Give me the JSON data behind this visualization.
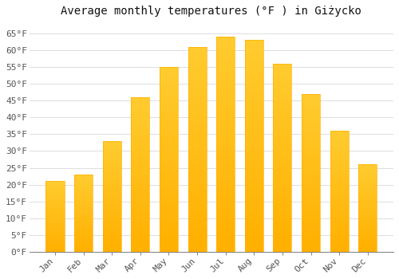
{
  "title": "Average monthly temperatures (°F ) in Giżycko",
  "months": [
    "Jan",
    "Feb",
    "Mar",
    "Apr",
    "May",
    "Jun",
    "Jul",
    "Aug",
    "Sep",
    "Oct",
    "Nov",
    "Dec"
  ],
  "values": [
    21,
    23,
    33,
    46,
    55,
    61,
    64,
    63,
    56,
    47,
    36,
    26
  ],
  "bar_color_top": "#FFC830",
  "bar_color_bottom": "#FFB000",
  "background_color": "#FFFFFF",
  "grid_color": "#DDDDDD",
  "ylim": [
    0,
    68
  ],
  "yticks": [
    0,
    5,
    10,
    15,
    20,
    25,
    30,
    35,
    40,
    45,
    50,
    55,
    60,
    65
  ],
  "ytick_labels": [
    "0°F",
    "5°F",
    "10°F",
    "15°F",
    "20°F",
    "25°F",
    "30°F",
    "35°F",
    "40°F",
    "45°F",
    "50°F",
    "55°F",
    "60°F",
    "65°F"
  ],
  "title_fontsize": 10,
  "tick_fontsize": 8,
  "font_family": "monospace"
}
